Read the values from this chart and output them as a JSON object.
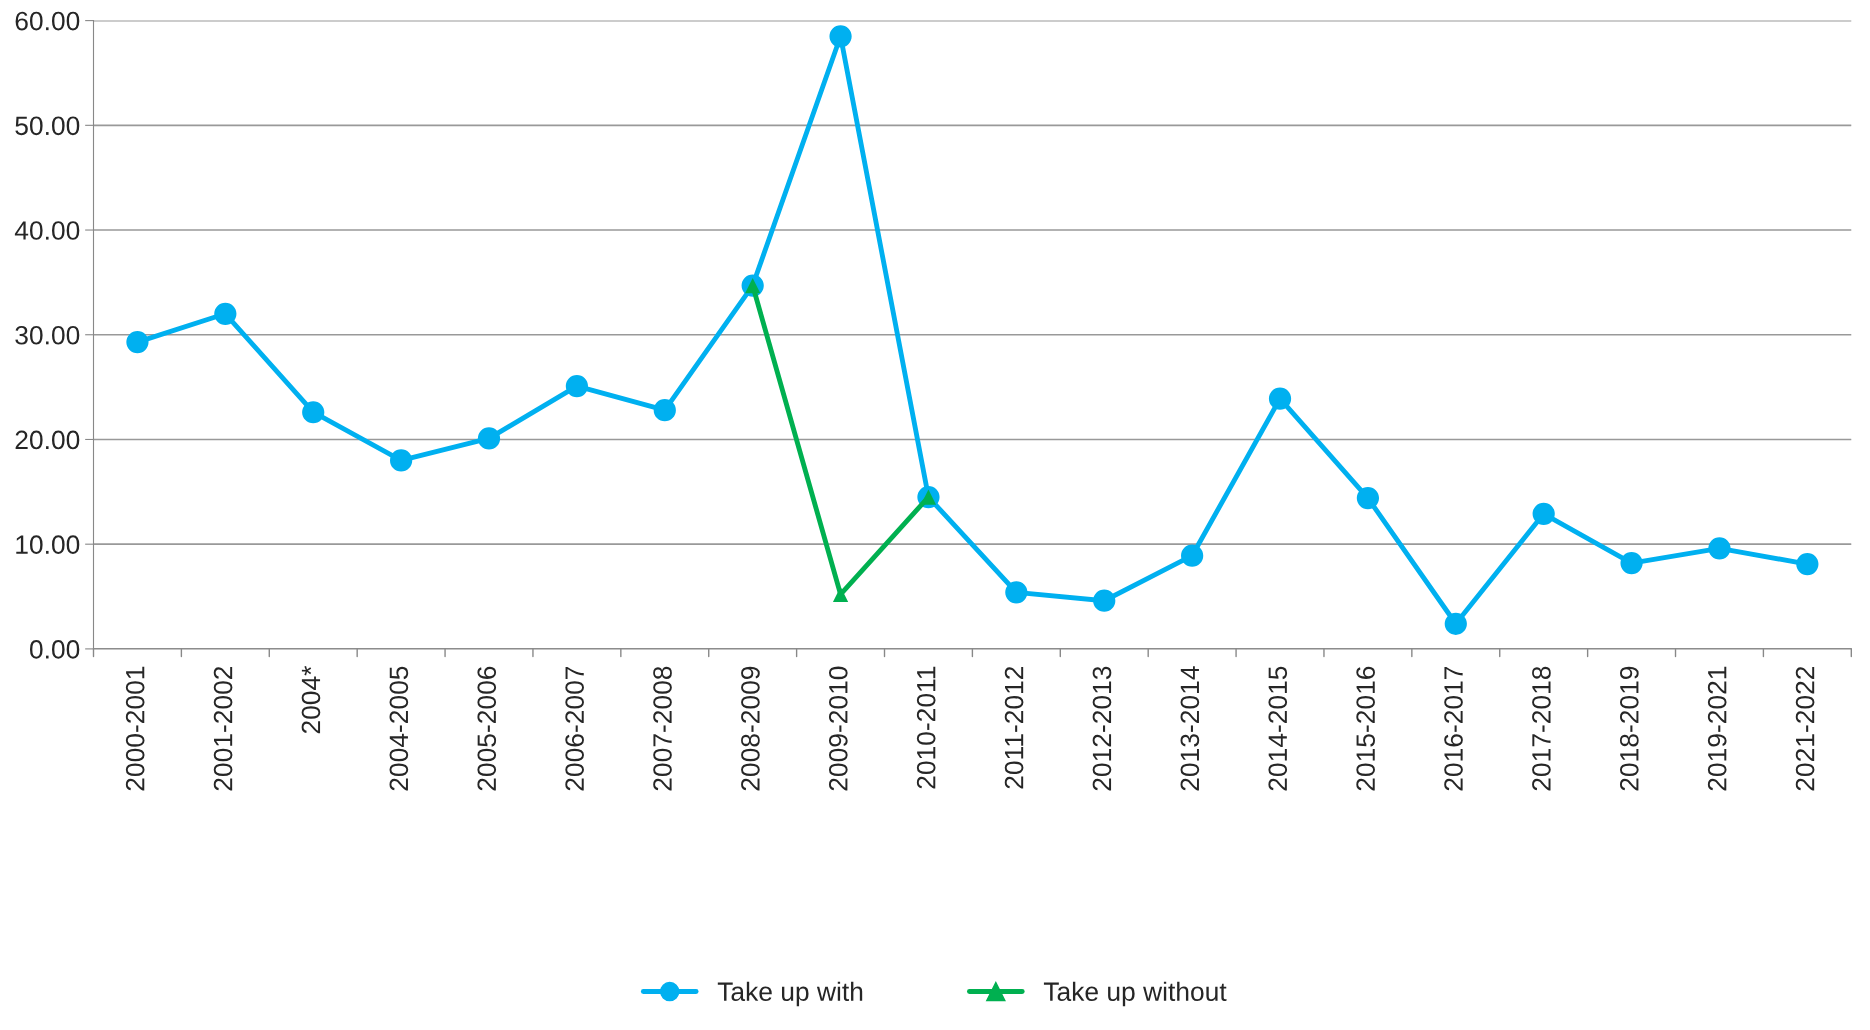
{
  "chart_data": {
    "type": "line",
    "categories": [
      "2000-2001",
      "2001-2002",
      "2004*",
      "2004-2005",
      "2005-2006",
      "2006-2007",
      "2007-2008",
      "2008-2009",
      "2009-2010",
      "2010-2011",
      "2011-2012",
      "2012-2013",
      "2013-2014",
      "2014-2015",
      "2015-2016",
      "2016-2017",
      "2017-2018",
      "2018-2019",
      "2019-2021",
      "2021-2022"
    ],
    "series": [
      {
        "name": "Take up with",
        "color": "#00b0f0",
        "marker": "circle",
        "values": [
          29.3,
          32.0,
          22.6,
          18.0,
          20.1,
          25.1,
          22.8,
          34.7,
          58.5,
          14.5,
          5.4,
          4.6,
          8.9,
          23.9,
          14.4,
          2.4,
          12.9,
          8.2,
          9.6,
          8.1
        ]
      },
      {
        "name": "Take up without",
        "color": "#00b050",
        "marker": "triangle",
        "values": [
          null,
          null,
          null,
          null,
          null,
          null,
          null,
          34.7,
          5.2,
          14.5,
          null,
          null,
          null,
          null,
          null,
          null,
          null,
          null,
          null,
          null
        ]
      }
    ],
    "ylim": [
      0,
      60
    ],
    "yticks": [
      {
        "value": 0,
        "label": "0.00"
      },
      {
        "value": 10,
        "label": "10.00"
      },
      {
        "value": 20,
        "label": "20.00"
      },
      {
        "value": 30,
        "label": "30.00"
      },
      {
        "value": 40,
        "label": "40.00"
      },
      {
        "value": 50,
        "label": "50.00"
      },
      {
        "value": 60,
        "label": "60.00"
      }
    ],
    "grid": "y",
    "legend": "bottom",
    "line_style": "solid"
  }
}
